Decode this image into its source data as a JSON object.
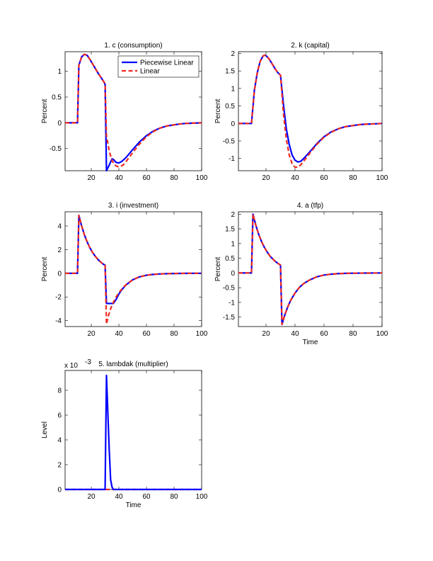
{
  "chart_data": [
    {
      "type": "line",
      "title": "1. c (consumption)",
      "xlabel": "",
      "ylabel": "Percent",
      "xlim": [
        1,
        100
      ],
      "ylim": [
        -0.93,
        1.38
      ],
      "xticks": [
        20,
        40,
        60,
        80,
        100
      ],
      "yticks": [
        -0.5,
        0,
        0.5,
        1
      ],
      "ytick_labels": [
        "-0.5",
        "0",
        "0.5",
        "1"
      ],
      "exponent_label": "",
      "legend": {
        "placement": "top-right",
        "entries": [
          {
            "label": "Piecewise Linear",
            "series": "pl"
          },
          {
            "label": "Linear",
            "series": "lin"
          }
        ]
      },
      "series": [
        {
          "key": "pl",
          "name": "Piecewise Linear",
          "color": "#0000ff",
          "style": "solid",
          "x": [
            1,
            10,
            11,
            13,
            15,
            17,
            19,
            21,
            23,
            25,
            27,
            29,
            30,
            31,
            33,
            35,
            36,
            38,
            40,
            42,
            45,
            50,
            55,
            60,
            65,
            70,
            75,
            80,
            85,
            90,
            95,
            100
          ],
          "y": [
            0,
            0,
            1.12,
            1.28,
            1.33,
            1.31,
            1.23,
            1.14,
            1.05,
            0.96,
            0.88,
            0.8,
            0.75,
            -0.93,
            -0.82,
            -0.7,
            -0.71,
            -0.77,
            -0.78,
            -0.75,
            -0.68,
            -0.52,
            -0.37,
            -0.25,
            -0.16,
            -0.1,
            -0.06,
            -0.04,
            -0.02,
            -0.01,
            -0.005,
            0
          ]
        },
        {
          "key": "lin",
          "name": "Linear",
          "color": "#ee2a20",
          "style": "dashed",
          "x": [
            1,
            10,
            11,
            13,
            15,
            17,
            19,
            21,
            23,
            25,
            27,
            29,
            30,
            31,
            33,
            35,
            37,
            39,
            41,
            43,
            45,
            50,
            55,
            60,
            65,
            70,
            75,
            80,
            85,
            90,
            95,
            100
          ],
          "y": [
            0,
            0,
            1.12,
            1.28,
            1.33,
            1.31,
            1.23,
            1.14,
            1.05,
            0.96,
            0.88,
            0.8,
            0.75,
            -0.25,
            -0.55,
            -0.73,
            -0.82,
            -0.85,
            -0.85,
            -0.82,
            -0.76,
            -0.58,
            -0.41,
            -0.27,
            -0.17,
            -0.1,
            -0.06,
            -0.04,
            -0.02,
            -0.01,
            -0.005,
            0
          ]
        }
      ]
    },
    {
      "type": "line",
      "title": "2. k (capital)",
      "xlabel": "",
      "ylabel": "Percent",
      "xlim": [
        1,
        100
      ],
      "ylim": [
        -1.35,
        2.05
      ],
      "xticks": [
        20,
        40,
        60,
        80,
        100
      ],
      "yticks": [
        -1,
        -0.5,
        0,
        0.5,
        1,
        1.5,
        2
      ],
      "ytick_labels": [
        "-1",
        "-0.5",
        "0",
        "0.5",
        "1",
        "1.5",
        "2"
      ],
      "exponent_label": "",
      "series": [
        {
          "key": "pl",
          "name": "Piecewise Linear",
          "color": "#0000ff",
          "style": "solid",
          "x": [
            1,
            10,
            12,
            14,
            16,
            18,
            19,
            20,
            22,
            24,
            26,
            28,
            30,
            32,
            34,
            36,
            38,
            40,
            42,
            44,
            46,
            50,
            55,
            60,
            65,
            70,
            75,
            80,
            85,
            90,
            95,
            100
          ],
          "y": [
            0,
            0,
            0.95,
            1.45,
            1.78,
            1.93,
            1.95,
            1.94,
            1.85,
            1.72,
            1.58,
            1.46,
            1.38,
            0.55,
            -0.15,
            -0.6,
            -0.9,
            -1.05,
            -1.1,
            -1.08,
            -1.0,
            -0.82,
            -0.58,
            -0.38,
            -0.24,
            -0.15,
            -0.09,
            -0.06,
            -0.03,
            -0.02,
            -0.01,
            0
          ]
        },
        {
          "key": "lin",
          "name": "Linear",
          "color": "#ee2a20",
          "style": "dashed",
          "x": [
            1,
            10,
            12,
            14,
            16,
            18,
            19,
            20,
            22,
            24,
            26,
            28,
            30,
            32,
            34,
            36,
            38,
            40,
            42,
            44,
            46,
            50,
            55,
            60,
            65,
            70,
            75,
            80,
            85,
            90,
            95,
            100
          ],
          "y": [
            0,
            0,
            0.95,
            1.45,
            1.78,
            1.93,
            1.95,
            1.94,
            1.85,
            1.72,
            1.58,
            1.46,
            1.38,
            0.3,
            -0.45,
            -0.9,
            -1.15,
            -1.25,
            -1.25,
            -1.18,
            -1.08,
            -0.86,
            -0.6,
            -0.39,
            -0.25,
            -0.15,
            -0.09,
            -0.06,
            -0.03,
            -0.02,
            -0.01,
            0
          ]
        }
      ]
    },
    {
      "type": "line",
      "title": "3. i (investment)",
      "xlabel": "",
      "ylabel": "Percent",
      "xlim": [
        1,
        100
      ],
      "ylim": [
        -4.5,
        5.2
      ],
      "xticks": [
        20,
        40,
        60,
        80,
        100
      ],
      "yticks": [
        -4,
        -2,
        0,
        2,
        4
      ],
      "ytick_labels": [
        "-4",
        "-2",
        "0",
        "2",
        "4"
      ],
      "exponent_label": "",
      "series": [
        {
          "key": "pl",
          "name": "Piecewise Linear",
          "color": "#0000ff",
          "style": "solid",
          "x": [
            1,
            10,
            11,
            13,
            15,
            17,
            19,
            21,
            23,
            25,
            27,
            29,
            30,
            31,
            32,
            34,
            36,
            38,
            40,
            42,
            45,
            50,
            55,
            60,
            65,
            70,
            75,
            80,
            85,
            90,
            95,
            100
          ],
          "y": [
            0,
            0,
            4.9,
            4.0,
            3.25,
            2.65,
            2.15,
            1.75,
            1.42,
            1.15,
            0.93,
            0.75,
            0.68,
            -2.55,
            -2.55,
            -2.55,
            -2.55,
            -2.2,
            -1.75,
            -1.4,
            -1.0,
            -0.55,
            -0.3,
            -0.16,
            -0.09,
            -0.05,
            -0.03,
            -0.015,
            -0.008,
            -0.004,
            -0.002,
            0
          ]
        },
        {
          "key": "lin",
          "name": "Linear",
          "color": "#ee2a20",
          "style": "dashed",
          "x": [
            1,
            10,
            11,
            13,
            15,
            17,
            19,
            21,
            23,
            25,
            27,
            29,
            30,
            31,
            32,
            34,
            36,
            38,
            40,
            42,
            45,
            50,
            55,
            60,
            65,
            70,
            75,
            80,
            85,
            90,
            95,
            100
          ],
          "y": [
            0,
            0,
            4.9,
            4.0,
            3.25,
            2.65,
            2.15,
            1.75,
            1.42,
            1.15,
            0.93,
            0.75,
            0.68,
            -4.3,
            -3.75,
            -3.0,
            -2.45,
            -2.0,
            -1.65,
            -1.35,
            -0.98,
            -0.55,
            -0.3,
            -0.16,
            -0.09,
            -0.05,
            -0.03,
            -0.015,
            -0.008,
            -0.004,
            -0.002,
            0
          ]
        }
      ]
    },
    {
      "type": "line",
      "title": "4. a (tfp)",
      "xlabel": "Time",
      "ylabel": "Percent",
      "xlim": [
        1,
        100
      ],
      "ylim": [
        -1.82,
        2.08
      ],
      "xticks": [
        20,
        40,
        60,
        80,
        100
      ],
      "yticks": [
        -1.5,
        -1,
        -0.5,
        0,
        0.5,
        1,
        1.5,
        2
      ],
      "ytick_labels": [
        "-1.5",
        "-1",
        "-0.5",
        "0",
        "0.5",
        "1",
        "1.5",
        "2"
      ],
      "exponent_label": "",
      "series": [
        {
          "key": "pl",
          "name": "Piecewise Linear",
          "color": "#0000ff",
          "style": "solid",
          "x": [
            1,
            10,
            11,
            13,
            15,
            17,
            19,
            21,
            23,
            25,
            27,
            29,
            30,
            31,
            33,
            35,
            37,
            40,
            43,
            46,
            50,
            55,
            60,
            65,
            70,
            75,
            80,
            85,
            90,
            95,
            100
          ],
          "y": [
            0,
            0,
            2.0,
            1.62,
            1.31,
            1.06,
            0.86,
            0.7,
            0.56,
            0.46,
            0.37,
            0.3,
            0.27,
            -1.75,
            -1.42,
            -1.15,
            -0.93,
            -0.68,
            -0.49,
            -0.36,
            -0.24,
            -0.13,
            -0.07,
            -0.04,
            -0.02,
            -0.012,
            -0.007,
            -0.004,
            -0.002,
            -0.001,
            0
          ]
        },
        {
          "key": "lin",
          "name": "Linear",
          "color": "#ee2a20",
          "style": "dashed",
          "x": [
            1,
            10,
            11,
            13,
            15,
            17,
            19,
            21,
            23,
            25,
            27,
            29,
            30,
            31,
            33,
            35,
            37,
            40,
            43,
            46,
            50,
            55,
            60,
            65,
            70,
            75,
            80,
            85,
            90,
            95,
            100
          ],
          "y": [
            0,
            0,
            2.0,
            1.62,
            1.31,
            1.06,
            0.86,
            0.7,
            0.56,
            0.46,
            0.37,
            0.3,
            0.27,
            -1.75,
            -1.42,
            -1.15,
            -0.93,
            -0.68,
            -0.49,
            -0.36,
            -0.24,
            -0.13,
            -0.07,
            -0.04,
            -0.02,
            -0.012,
            -0.007,
            -0.004,
            -0.002,
            -0.001,
            0
          ]
        }
      ]
    },
    {
      "type": "line",
      "title": "5. lambdak (multiplier)",
      "xlabel": "Time",
      "ylabel": "Level",
      "xlim": [
        1,
        100
      ],
      "ylim": [
        0,
        0.0096
      ],
      "xticks": [
        20,
        40,
        60,
        80,
        100
      ],
      "yticks": [
        0,
        0.002,
        0.004,
        0.006,
        0.008
      ],
      "ytick_labels": [
        "0",
        "2",
        "4",
        "6",
        "8"
      ],
      "exponent_label": "x 10",
      "exponent_power": "-3",
      "series": [
        {
          "key": "lin",
          "name": "Linear",
          "color": "#ee2a20",
          "style": "dashed",
          "x": [
            1,
            100
          ],
          "y": [
            0,
            0
          ]
        },
        {
          "key": "pl",
          "name": "Piecewise Linear",
          "color": "#0000ff",
          "style": "solid",
          "x": [
            1,
            30,
            31,
            32,
            33,
            34,
            35,
            36,
            100
          ],
          "y": [
            0,
            0,
            0.0092,
            0.0062,
            0.0032,
            0.0008,
            0.0002,
            0,
            0
          ]
        }
      ]
    }
  ]
}
